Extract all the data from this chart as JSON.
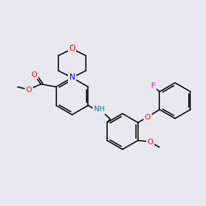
{
  "background_color": "#e8e8f0",
  "bond_color": "#000000",
  "bond_width": 1.2,
  "atom_colors": {
    "O": "#ff0000",
    "N": "#0000ff",
    "N_amine": "#008080",
    "F": "#ff00ff",
    "C": "#000000"
  },
  "font_size": 7.5
}
